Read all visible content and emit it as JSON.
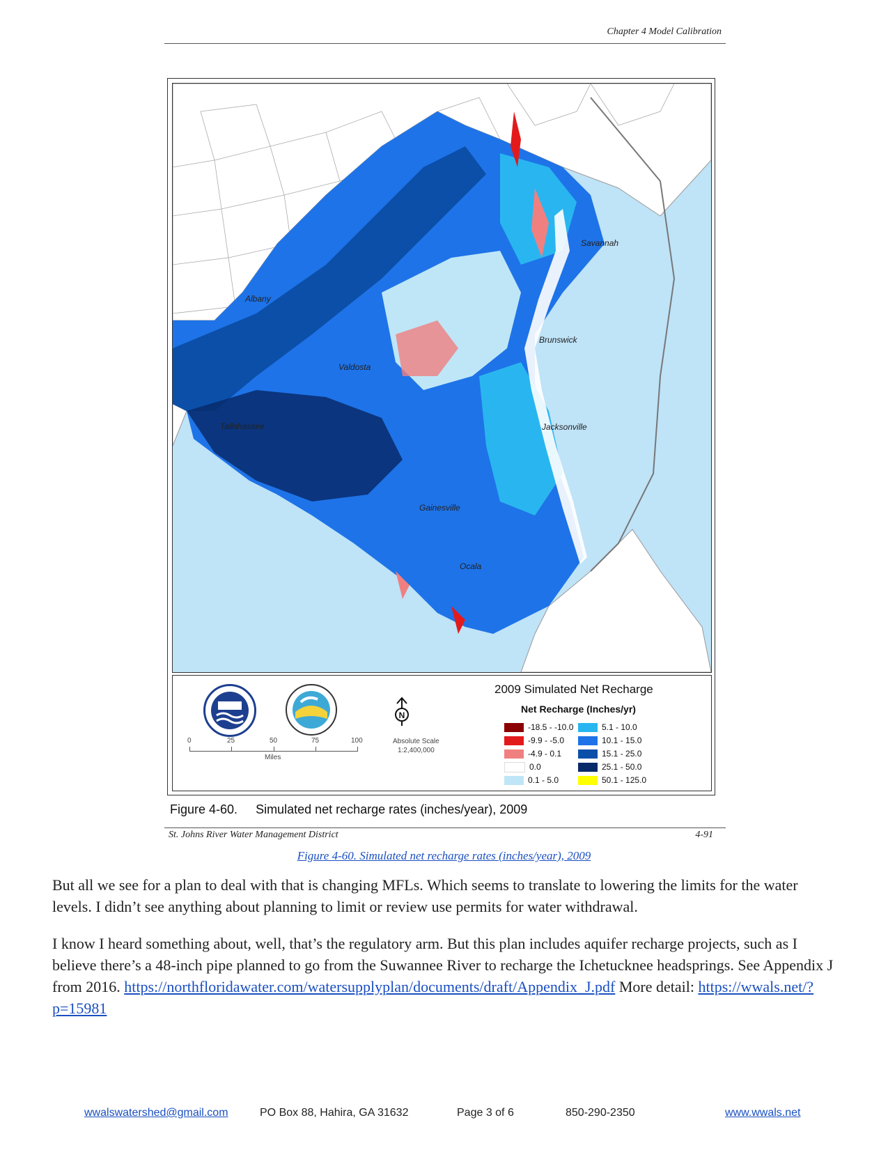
{
  "report": {
    "header": "Chapter 4 Model Calibration",
    "footer_left": "St. Johns River Water Management District",
    "footer_right": "4-91"
  },
  "map": {
    "cities": [
      "Savannah",
      "Brunswick",
      "Valdosta",
      "Jacksonville",
      "Gainesville",
      "Ocala",
      "Albany",
      "Tallahassee"
    ]
  },
  "legend": {
    "title": "2009 Simulated Net Recharge",
    "subtitle": "Net Recharge (Inches/yr)",
    "items": [
      {
        "label": "-18.5 - -10.0",
        "color": "#8b0000"
      },
      {
        "label": "-9.9 - -5.0",
        "color": "#e31a1c"
      },
      {
        "label": "-4.9 - 0.1",
        "color": "#f08080"
      },
      {
        "label": "0.0",
        "color": "#ffffff"
      },
      {
        "label": "0.1 - 5.0",
        "color": "#bfe6f7"
      },
      {
        "label": "5.1 - 10.0",
        "color": "#29b6f0"
      },
      {
        "label": "10.1 - 15.0",
        "color": "#1e73e8"
      },
      {
        "label": "15.1 - 25.0",
        "color": "#0b4fa8"
      },
      {
        "label": "25.1 - 50.0",
        "color": "#082a6b"
      },
      {
        "label": "50.1 - 125.0",
        "color": "#ffff00"
      }
    ],
    "scale_ticks": [
      "0",
      "25",
      "50",
      "75",
      "100"
    ],
    "scale_unit": "Miles",
    "abs_scale_label": "Absolute Scale",
    "abs_scale_value": "1:2,400,000",
    "north_label": "N"
  },
  "figure": {
    "number": "Figure 4-60.",
    "caption": "Simulated net recharge rates (inches/year), 2009"
  },
  "caption_link": "Figure 4-60. Simulated net recharge rates (inches/year), 2009",
  "paragraphs": {
    "p1": "But all we see for a plan to deal with that is changing MFLs. Which seems to translate to lowering the limits for the water levels. I didn’t see anything about planning to limit or review use permits for water withdrawal.",
    "p2_text": "I know I heard something about, well, that’s the regulatory arm. But this plan includes aquifer recharge projects, such as I believe there’s a 48-inch pipe planned to go from the Suwannee River to recharge the Ichetucknee headsprings. See Appendix J from 2016.",
    "p2_link1": "https://northfloridawater.com/watersupplyplan/documents/draft/Appendix_J.pdf",
    "p2_more": "More detail:",
    "p2_link2": "https://wwals.net/?p=15981"
  },
  "page_footer": {
    "email": "wwalswatershed@gmail.com",
    "address": "PO Box 88, Hahira, GA 31632",
    "page": "Page 3 of 6",
    "phone": "850-290-2350",
    "website": "www.wwals.net"
  }
}
